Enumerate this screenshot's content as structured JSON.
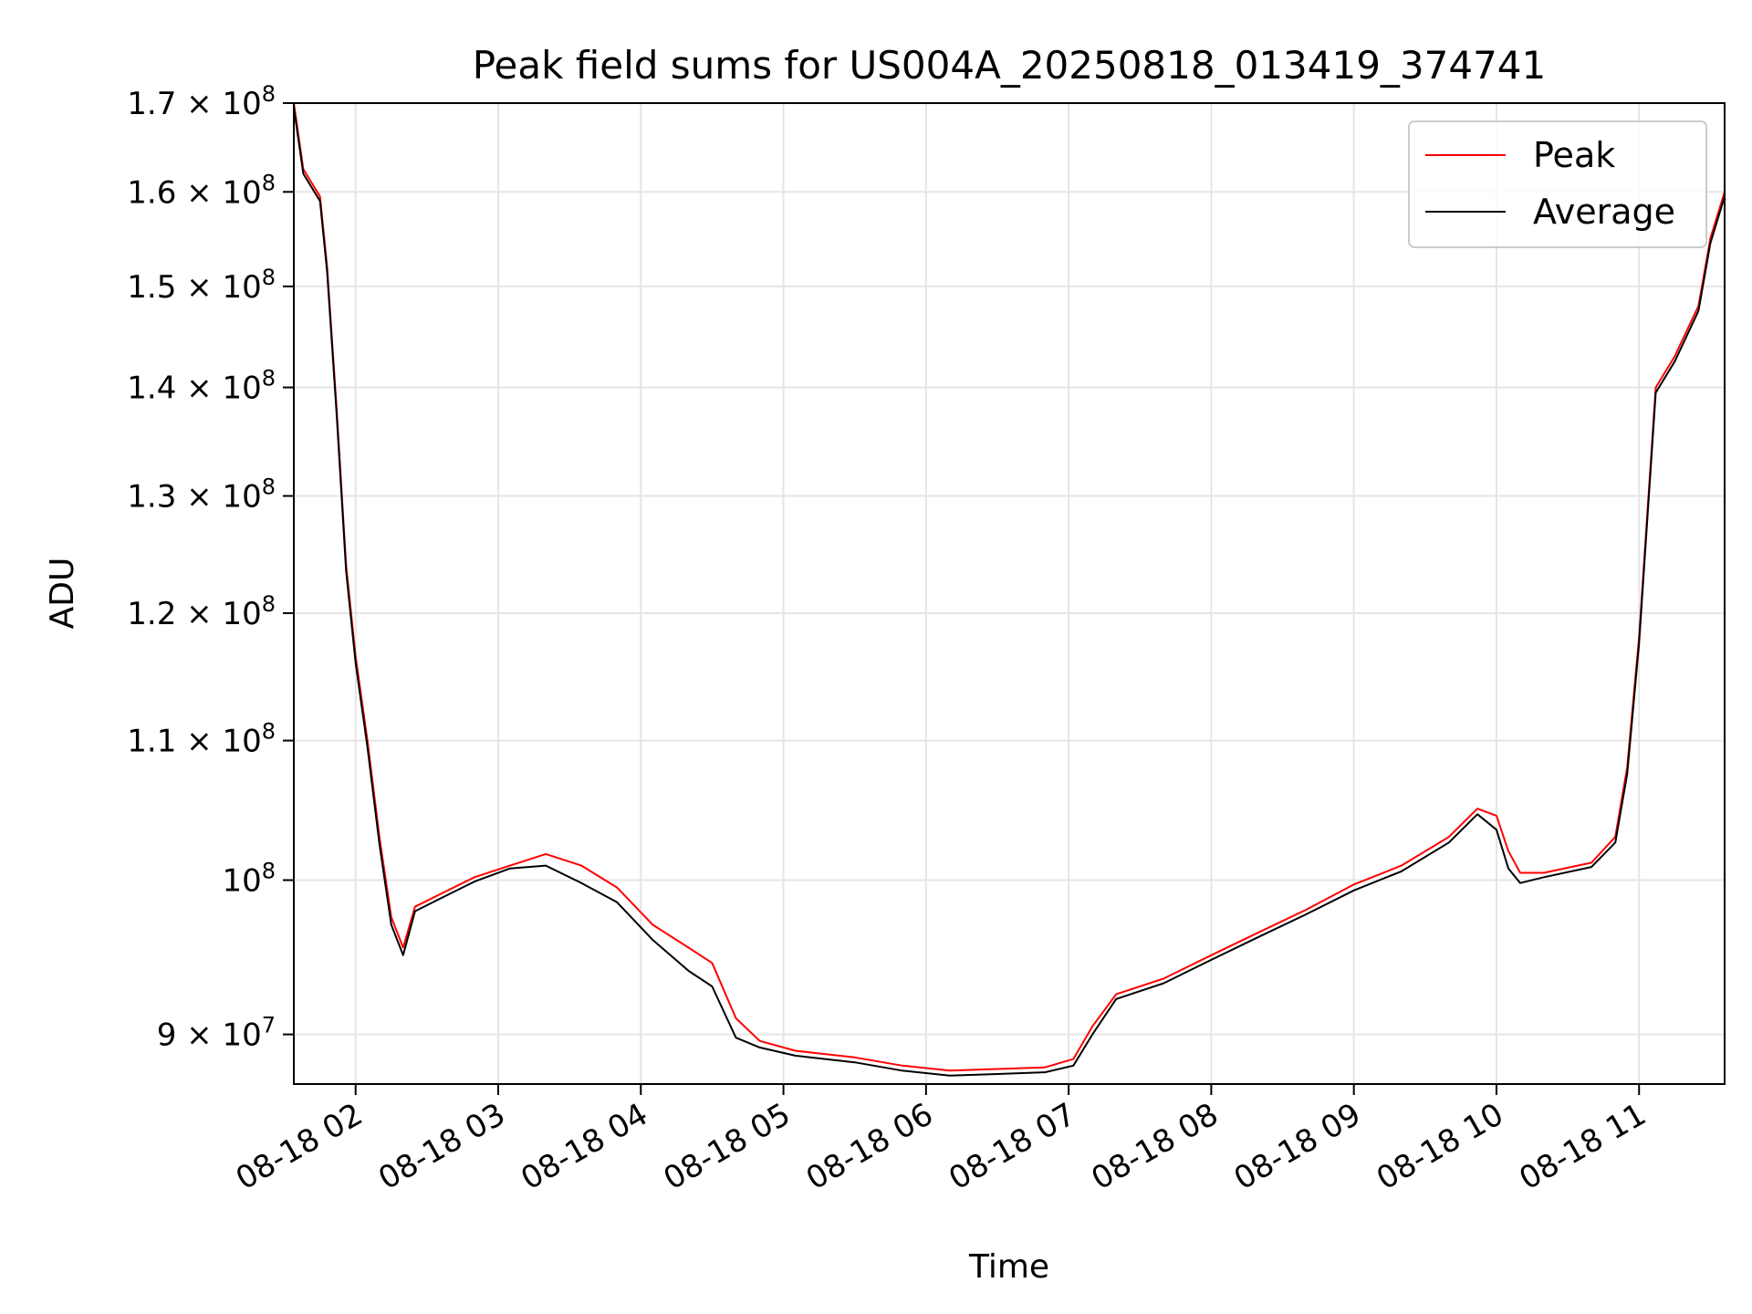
{
  "chart_data": {
    "type": "line",
    "title": "Peak field sums for US004A_20250818_013419_374741",
    "xlabel": "Time",
    "ylabel": "ADU",
    "yscale": "log",
    "grid": true,
    "legend_position": "top-right",
    "xlim": [
      "2025-08-18T01:34",
      "2025-08-18T11:36"
    ],
    "ylim": [
      87000000,
      170000000
    ],
    "x_tick_labels": [
      "08-18 02",
      "08-18 03",
      "08-18 04",
      "08-18 05",
      "08-18 06",
      "08-18 07",
      "08-18 08",
      "08-18 09",
      "08-18 10",
      "08-18 11"
    ],
    "x_tick_values": [
      "2025-08-18T02:00",
      "2025-08-18T03:00",
      "2025-08-18T04:00",
      "2025-08-18T05:00",
      "2025-08-18T06:00",
      "2025-08-18T07:00",
      "2025-08-18T08:00",
      "2025-08-18T09:00",
      "2025-08-18T10:00",
      "2025-08-18T11:00"
    ],
    "y_ticks": [
      {
        "value": 90000000,
        "mantissa": "9",
        "times": "×",
        "base": "10",
        "exp": "7"
      },
      {
        "value": 100000000,
        "mantissa": "",
        "times": "",
        "base": "10",
        "exp": "8"
      },
      {
        "value": 110000000,
        "mantissa": "1.1",
        "times": "×",
        "base": "10",
        "exp": "8"
      },
      {
        "value": 120000000,
        "mantissa": "1.2",
        "times": "×",
        "base": "10",
        "exp": "8"
      },
      {
        "value": 130000000,
        "mantissa": "1.3",
        "times": "×",
        "base": "10",
        "exp": "8"
      },
      {
        "value": 140000000,
        "mantissa": "1.4",
        "times": "×",
        "base": "10",
        "exp": "8"
      },
      {
        "value": 150000000,
        "mantissa": "1.5",
        "times": "×",
        "base": "10",
        "exp": "8"
      },
      {
        "value": 160000000,
        "mantissa": "1.6",
        "times": "×",
        "base": "10",
        "exp": "8"
      },
      {
        "value": 170000000,
        "mantissa": "1.7",
        "times": "×",
        "base": "10",
        "exp": "8"
      }
    ],
    "series": [
      {
        "name": "Peak",
        "color": "#ff0000",
        "points": [
          [
            "2025-08-18T01:34",
            170000000
          ],
          [
            "2025-08-18T01:38",
            162500000
          ],
          [
            "2025-08-18T01:45",
            159500000
          ],
          [
            "2025-08-18T01:48",
            152000000
          ],
          [
            "2025-08-18T01:52",
            138000000
          ],
          [
            "2025-08-18T01:56",
            124000000
          ],
          [
            "2025-08-18T02:00",
            116500000
          ],
          [
            "2025-08-18T02:05",
            110000000
          ],
          [
            "2025-08-18T02:10",
            103000000
          ],
          [
            "2025-08-18T02:15",
            97500000
          ],
          [
            "2025-08-18T02:20",
            95500000
          ],
          [
            "2025-08-18T02:25",
            98200000
          ],
          [
            "2025-08-18T02:35",
            99000000
          ],
          [
            "2025-08-18T02:50",
            100200000
          ],
          [
            "2025-08-18T03:05",
            101000000
          ],
          [
            "2025-08-18T03:20",
            101800000
          ],
          [
            "2025-08-18T03:35",
            101000000
          ],
          [
            "2025-08-18T03:50",
            99500000
          ],
          [
            "2025-08-18T04:05",
            97000000
          ],
          [
            "2025-08-18T04:20",
            95500000
          ],
          [
            "2025-08-18T04:30",
            94500000
          ],
          [
            "2025-08-18T04:40",
            91000000
          ],
          [
            "2025-08-18T04:50",
            89600000
          ],
          [
            "2025-08-18T05:05",
            89000000
          ],
          [
            "2025-08-18T05:30",
            88600000
          ],
          [
            "2025-08-18T05:50",
            88100000
          ],
          [
            "2025-08-18T06:10",
            87800000
          ],
          [
            "2025-08-18T06:30",
            87900000
          ],
          [
            "2025-08-18T06:50",
            88000000
          ],
          [
            "2025-08-18T07:02",
            88500000
          ],
          [
            "2025-08-18T07:10",
            90500000
          ],
          [
            "2025-08-18T07:20",
            92500000
          ],
          [
            "2025-08-18T07:40",
            93500000
          ],
          [
            "2025-08-18T08:00",
            95000000
          ],
          [
            "2025-08-18T08:20",
            96500000
          ],
          [
            "2025-08-18T08:40",
            98000000
          ],
          [
            "2025-08-18T09:00",
            99700000
          ],
          [
            "2025-08-18T09:20",
            101000000
          ],
          [
            "2025-08-18T09:40",
            103000000
          ],
          [
            "2025-08-18T09:52",
            105000000
          ],
          [
            "2025-08-18T10:00",
            104500000
          ],
          [
            "2025-08-18T10:05",
            102000000
          ],
          [
            "2025-08-18T10:10",
            100500000
          ],
          [
            "2025-08-18T10:20",
            100500000
          ],
          [
            "2025-08-18T10:40",
            101200000
          ],
          [
            "2025-08-18T10:50",
            103000000
          ],
          [
            "2025-08-18T10:55",
            108000000
          ],
          [
            "2025-08-18T11:00",
            118000000
          ],
          [
            "2025-08-18T11:07",
            140000000
          ],
          [
            "2025-08-18T11:15",
            143000000
          ],
          [
            "2025-08-18T11:25",
            148000000
          ],
          [
            "2025-08-18T11:30",
            155000000
          ],
          [
            "2025-08-18T11:36",
            160000000
          ]
        ]
      },
      {
        "name": "Average",
        "color": "#000000",
        "points": [
          [
            "2025-08-18T01:34",
            169500000
          ],
          [
            "2025-08-18T01:38",
            162000000
          ],
          [
            "2025-08-18T01:45",
            159000000
          ],
          [
            "2025-08-18T01:48",
            151500000
          ],
          [
            "2025-08-18T01:52",
            137500000
          ],
          [
            "2025-08-18T01:56",
            123500000
          ],
          [
            "2025-08-18T02:00",
            116000000
          ],
          [
            "2025-08-18T02:05",
            109500000
          ],
          [
            "2025-08-18T02:10",
            102500000
          ],
          [
            "2025-08-18T02:15",
            97000000
          ],
          [
            "2025-08-18T02:20",
            95000000
          ],
          [
            "2025-08-18T02:25",
            97900000
          ],
          [
            "2025-08-18T02:35",
            98700000
          ],
          [
            "2025-08-18T02:50",
            99900000
          ],
          [
            "2025-08-18T03:05",
            100800000
          ],
          [
            "2025-08-18T03:20",
            101000000
          ],
          [
            "2025-08-18T03:35",
            99800000
          ],
          [
            "2025-08-18T03:50",
            98500000
          ],
          [
            "2025-08-18T04:05",
            96000000
          ],
          [
            "2025-08-18T04:20",
            94000000
          ],
          [
            "2025-08-18T04:30",
            93000000
          ],
          [
            "2025-08-18T04:40",
            89800000
          ],
          [
            "2025-08-18T04:50",
            89200000
          ],
          [
            "2025-08-18T05:05",
            88700000
          ],
          [
            "2025-08-18T05:30",
            88300000
          ],
          [
            "2025-08-18T05:50",
            87800000
          ],
          [
            "2025-08-18T06:10",
            87500000
          ],
          [
            "2025-08-18T06:30",
            87600000
          ],
          [
            "2025-08-18T06:50",
            87700000
          ],
          [
            "2025-08-18T07:02",
            88100000
          ],
          [
            "2025-08-18T07:10",
            90000000
          ],
          [
            "2025-08-18T07:20",
            92200000
          ],
          [
            "2025-08-18T07:40",
            93200000
          ],
          [
            "2025-08-18T08:00",
            94700000
          ],
          [
            "2025-08-18T08:20",
            96200000
          ],
          [
            "2025-08-18T08:40",
            97700000
          ],
          [
            "2025-08-18T09:00",
            99300000
          ],
          [
            "2025-08-18T09:20",
            100600000
          ],
          [
            "2025-08-18T09:40",
            102600000
          ],
          [
            "2025-08-18T09:52",
            104600000
          ],
          [
            "2025-08-18T10:00",
            103500000
          ],
          [
            "2025-08-18T10:05",
            100800000
          ],
          [
            "2025-08-18T10:10",
            99800000
          ],
          [
            "2025-08-18T10:20",
            100200000
          ],
          [
            "2025-08-18T10:40",
            100900000
          ],
          [
            "2025-08-18T10:50",
            102600000
          ],
          [
            "2025-08-18T10:55",
            107500000
          ],
          [
            "2025-08-18T11:00",
            117500000
          ],
          [
            "2025-08-18T11:07",
            139500000
          ],
          [
            "2025-08-18T11:15",
            142500000
          ],
          [
            "2025-08-18T11:25",
            147500000
          ],
          [
            "2025-08-18T11:30",
            154500000
          ],
          [
            "2025-08-18T11:36",
            159500000
          ]
        ]
      }
    ]
  }
}
